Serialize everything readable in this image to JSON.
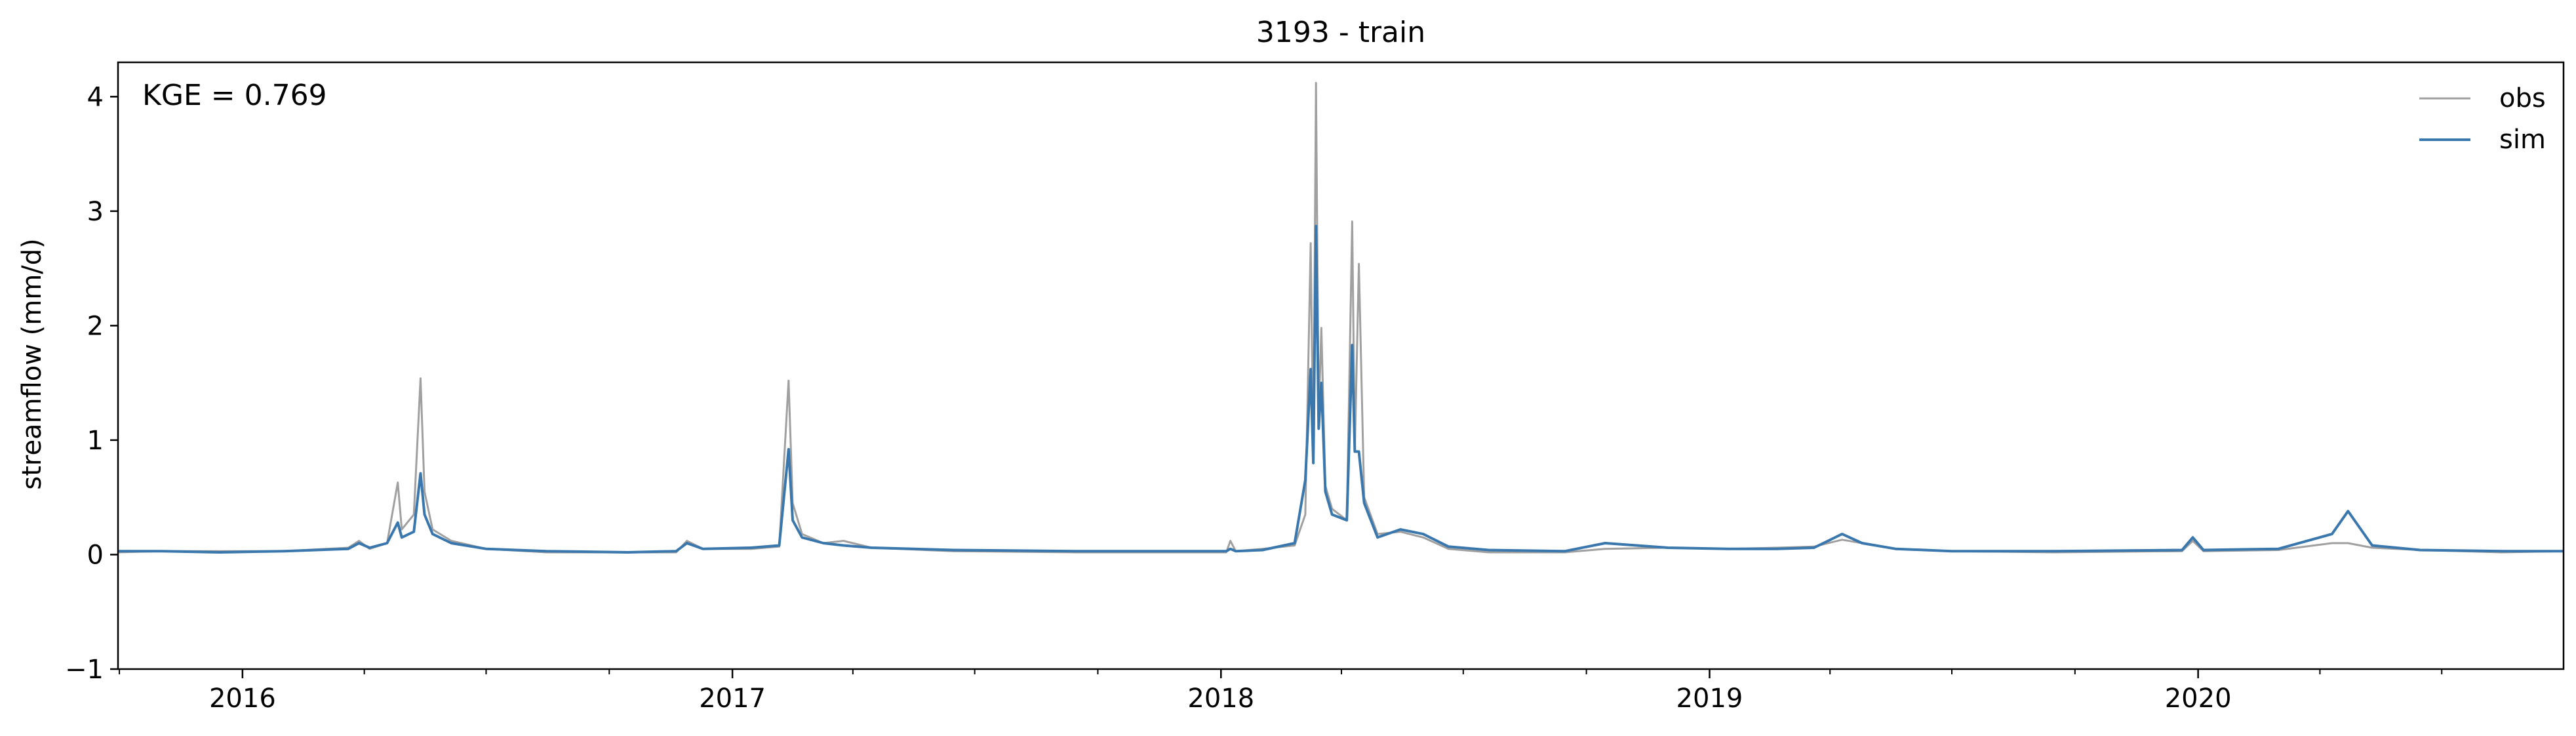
{
  "chart_data": {
    "type": "line",
    "title": "3193 - train",
    "xlabel": "",
    "ylabel": "streamflow (mm/d)",
    "annotation": "KGE = 0.769",
    "xlim": [
      "2015-09-30",
      "2020-09-30"
    ],
    "ylim": [
      -1,
      4.3
    ],
    "yticks": [
      -1,
      0,
      1,
      2,
      3,
      4
    ],
    "ytick_labels": [
      "−1",
      "0",
      "1",
      "2",
      "3",
      "4"
    ],
    "xticks": [
      "2016-01-01",
      "2017-01-01",
      "2018-01-01",
      "2019-01-01",
      "2020-01-01"
    ],
    "xtick_labels": [
      "2016",
      "2017",
      "2018",
      "2019",
      "2020"
    ],
    "grid": false,
    "legend_position": "top-right",
    "series": [
      {
        "name": "obs",
        "color": "#a0a0a0",
        "points": [
          [
            "2015-09-30",
            0.02
          ],
          [
            "2015-11-01",
            0.03
          ],
          [
            "2015-12-15",
            0.03
          ],
          [
            "2016-02-01",
            0.03
          ],
          [
            "2016-03-20",
            0.06
          ],
          [
            "2016-03-28",
            0.12
          ],
          [
            "2016-04-05",
            0.05
          ],
          [
            "2016-04-18",
            0.1
          ],
          [
            "2016-04-26",
            0.63
          ],
          [
            "2016-04-29",
            0.22
          ],
          [
            "2016-05-08",
            0.35
          ],
          [
            "2016-05-13",
            1.54
          ],
          [
            "2016-05-16",
            0.55
          ],
          [
            "2016-05-22",
            0.22
          ],
          [
            "2016-06-05",
            0.12
          ],
          [
            "2016-07-01",
            0.05
          ],
          [
            "2016-08-15",
            0.02
          ],
          [
            "2016-10-15",
            0.02
          ],
          [
            "2016-11-20",
            0.02
          ],
          [
            "2016-11-28",
            0.12
          ],
          [
            "2016-12-10",
            0.05
          ],
          [
            "2017-01-15",
            0.05
          ],
          [
            "2017-02-05",
            0.07
          ],
          [
            "2017-02-12",
            1.52
          ],
          [
            "2017-02-15",
            0.45
          ],
          [
            "2017-02-22",
            0.18
          ],
          [
            "2017-03-10",
            0.1
          ],
          [
            "2017-03-25",
            0.12
          ],
          [
            "2017-04-15",
            0.06
          ],
          [
            "2017-06-15",
            0.03
          ],
          [
            "2017-09-15",
            0.02
          ],
          [
            "2017-12-20",
            0.02
          ],
          [
            "2018-01-05",
            0.02
          ],
          [
            "2018-01-08",
            0.12
          ],
          [
            "2018-01-12",
            0.03
          ],
          [
            "2018-02-01",
            0.05
          ],
          [
            "2018-02-25",
            0.08
          ],
          [
            "2018-03-05",
            0.35
          ],
          [
            "2018-03-09",
            2.72
          ],
          [
            "2018-03-11",
            0.9
          ],
          [
            "2018-03-13",
            4.12
          ],
          [
            "2018-03-15",
            1.2
          ],
          [
            "2018-03-17",
            1.98
          ],
          [
            "2018-03-20",
            0.6
          ],
          [
            "2018-03-25",
            0.4
          ],
          [
            "2018-04-05",
            0.3
          ],
          [
            "2018-04-09",
            2.91
          ],
          [
            "2018-04-11",
            0.9
          ],
          [
            "2018-04-14",
            2.54
          ],
          [
            "2018-04-18",
            0.5
          ],
          [
            "2018-04-28",
            0.18
          ],
          [
            "2018-05-15",
            0.2
          ],
          [
            "2018-06-01",
            0.15
          ],
          [
            "2018-06-20",
            0.05
          ],
          [
            "2018-07-20",
            0.02
          ],
          [
            "2018-09-15",
            0.02
          ],
          [
            "2018-10-15",
            0.05
          ],
          [
            "2018-12-01",
            0.06
          ],
          [
            "2019-01-15",
            0.05
          ],
          [
            "2019-02-20",
            0.06
          ],
          [
            "2019-03-20",
            0.07
          ],
          [
            "2019-04-10",
            0.13
          ],
          [
            "2019-04-25",
            0.1
          ],
          [
            "2019-05-20",
            0.05
          ],
          [
            "2019-07-01",
            0.03
          ],
          [
            "2019-09-15",
            0.02
          ],
          [
            "2019-12-20",
            0.03
          ],
          [
            "2019-12-28",
            0.12
          ],
          [
            "2020-01-05",
            0.03
          ],
          [
            "2020-03-01",
            0.04
          ],
          [
            "2020-04-10",
            0.1
          ],
          [
            "2020-04-22",
            0.1
          ],
          [
            "2020-05-10",
            0.06
          ],
          [
            "2020-06-15",
            0.04
          ],
          [
            "2020-08-15",
            0.02
          ],
          [
            "2020-09-30",
            0.03
          ]
        ]
      },
      {
        "name": "sim",
        "color": "#3a77ad",
        "points": [
          [
            "2015-09-30",
            0.03
          ],
          [
            "2015-11-01",
            0.03
          ],
          [
            "2015-12-15",
            0.02
          ],
          [
            "2016-02-01",
            0.03
          ],
          [
            "2016-03-20",
            0.05
          ],
          [
            "2016-03-28",
            0.1
          ],
          [
            "2016-04-05",
            0.06
          ],
          [
            "2016-04-18",
            0.1
          ],
          [
            "2016-04-26",
            0.28
          ],
          [
            "2016-04-29",
            0.15
          ],
          [
            "2016-05-08",
            0.2
          ],
          [
            "2016-05-13",
            0.71
          ],
          [
            "2016-05-16",
            0.35
          ],
          [
            "2016-05-22",
            0.18
          ],
          [
            "2016-06-05",
            0.1
          ],
          [
            "2016-07-01",
            0.05
          ],
          [
            "2016-08-15",
            0.03
          ],
          [
            "2016-10-15",
            0.02
          ],
          [
            "2016-11-20",
            0.03
          ],
          [
            "2016-11-28",
            0.1
          ],
          [
            "2016-12-10",
            0.05
          ],
          [
            "2017-01-15",
            0.06
          ],
          [
            "2017-02-05",
            0.08
          ],
          [
            "2017-02-12",
            0.92
          ],
          [
            "2017-02-15",
            0.3
          ],
          [
            "2017-02-22",
            0.15
          ],
          [
            "2017-03-10",
            0.1
          ],
          [
            "2017-03-25",
            0.08
          ],
          [
            "2017-04-15",
            0.06
          ],
          [
            "2017-06-15",
            0.04
          ],
          [
            "2017-09-15",
            0.03
          ],
          [
            "2017-12-20",
            0.03
          ],
          [
            "2018-01-05",
            0.03
          ],
          [
            "2018-01-08",
            0.05
          ],
          [
            "2018-01-12",
            0.03
          ],
          [
            "2018-02-01",
            0.04
          ],
          [
            "2018-02-25",
            0.1
          ],
          [
            "2018-03-05",
            0.65
          ],
          [
            "2018-03-09",
            1.62
          ],
          [
            "2018-03-11",
            0.8
          ],
          [
            "2018-03-13",
            2.87
          ],
          [
            "2018-03-15",
            1.1
          ],
          [
            "2018-03-17",
            1.5
          ],
          [
            "2018-03-20",
            0.55
          ],
          [
            "2018-03-25",
            0.35
          ],
          [
            "2018-04-05",
            0.3
          ],
          [
            "2018-04-09",
            1.83
          ],
          [
            "2018-04-11",
            0.9
          ],
          [
            "2018-04-14",
            0.9
          ],
          [
            "2018-04-18",
            0.45
          ],
          [
            "2018-04-28",
            0.15
          ],
          [
            "2018-05-15",
            0.22
          ],
          [
            "2018-06-01",
            0.18
          ],
          [
            "2018-06-20",
            0.07
          ],
          [
            "2018-07-20",
            0.04
          ],
          [
            "2018-09-15",
            0.03
          ],
          [
            "2018-10-15",
            0.1
          ],
          [
            "2018-12-01",
            0.06
          ],
          [
            "2019-01-15",
            0.05
          ],
          [
            "2019-02-20",
            0.05
          ],
          [
            "2019-03-20",
            0.06
          ],
          [
            "2019-04-10",
            0.18
          ],
          [
            "2019-04-25",
            0.1
          ],
          [
            "2019-05-20",
            0.05
          ],
          [
            "2019-07-01",
            0.03
          ],
          [
            "2019-09-15",
            0.03
          ],
          [
            "2019-12-20",
            0.04
          ],
          [
            "2019-12-28",
            0.15
          ],
          [
            "2020-01-05",
            0.04
          ],
          [
            "2020-03-01",
            0.05
          ],
          [
            "2020-04-10",
            0.18
          ],
          [
            "2020-04-22",
            0.38
          ],
          [
            "2020-05-10",
            0.08
          ],
          [
            "2020-06-15",
            0.04
          ],
          [
            "2020-08-15",
            0.03
          ],
          [
            "2020-09-30",
            0.03
          ]
        ]
      }
    ]
  }
}
